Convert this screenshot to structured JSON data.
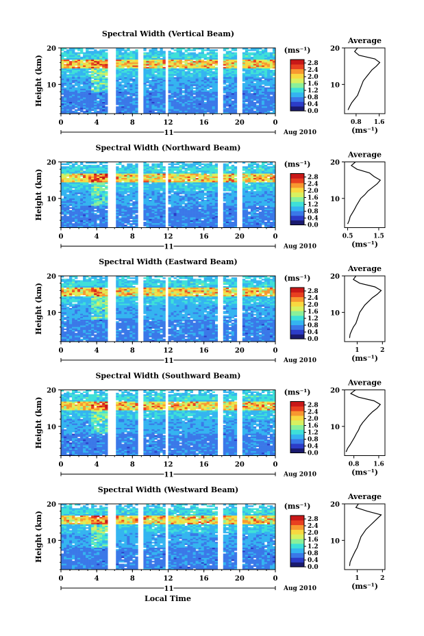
{
  "chart_data": {
    "type": "heatmap",
    "panels": [
      {
        "title": "Spectral Width (Vertical Beam)",
        "ylabel": "Height (km)",
        "ylim": [
          2,
          20
        ],
        "yticks": [
          "20",
          "10"
        ],
        "xlim": [
          0,
          24
        ],
        "xticks": [
          "0",
          "4",
          "8",
          "12",
          "16",
          "20",
          "0"
        ],
        "date_marker": "11",
        "date_label": "Aug 2010",
        "colorbar_unit": "(ms⁻¹)",
        "colorbar_ticks": [
          "2.8",
          "2.4",
          "2.0",
          "1.6",
          "1.2",
          "0.8",
          "0.4",
          "0.0"
        ],
        "colorbar_range": [
          0.0,
          3.0
        ],
        "data_gaps_hours": [
          [
            5.2,
            6.0
          ],
          [
            8.6,
            9.1
          ],
          [
            11.6,
            12.0
          ],
          [
            17.6,
            18.2
          ],
          [
            19.6,
            20.4
          ]
        ],
        "profile": {
          "title": "Average",
          "xlabel": "(ms⁻¹)",
          "xticks": [
            "0.8",
            "1.6"
          ],
          "xlim": [
            0.4,
            1.8
          ],
          "height_km": [
            3,
            4,
            5,
            6,
            7,
            8,
            9,
            10,
            11,
            12,
            13,
            14,
            15,
            16,
            17,
            18,
            19,
            20
          ],
          "width": [
            0.52,
            0.58,
            0.65,
            0.75,
            0.85,
            0.9,
            0.95,
            1.0,
            1.05,
            1.15,
            1.25,
            1.35,
            1.5,
            1.62,
            1.45,
            0.9,
            0.75,
            0.85
          ]
        }
      },
      {
        "title": "Spectral Width (Northward Beam)",
        "ylabel": "Height (km)",
        "ylim": [
          2,
          20
        ],
        "yticks": [
          "20",
          "10"
        ],
        "xlim": [
          0,
          24
        ],
        "xticks": [
          "0",
          "4",
          "8",
          "12",
          "16",
          "20",
          "0"
        ],
        "date_marker": "11",
        "date_label": "Aug 2010",
        "colorbar_unit": "(ms⁻¹)",
        "colorbar_ticks": [
          "2.8",
          "2.4",
          "2.0",
          "1.6",
          "1.2",
          "0.8",
          "0.4",
          "0.0"
        ],
        "colorbar_range": [
          0.0,
          3.0
        ],
        "data_gaps_hours": [
          [
            5.2,
            6.0
          ],
          [
            8.6,
            9.1
          ],
          [
            11.6,
            12.0
          ],
          [
            17.6,
            18.2
          ],
          [
            19.6,
            20.4
          ]
        ],
        "profile": {
          "title": "Average",
          "xlabel": "(ms⁻¹)",
          "xticks": [
            "0.5",
            "1.5"
          ],
          "xlim": [
            0.4,
            1.7
          ],
          "height_km": [
            3,
            4,
            5,
            6,
            7,
            8,
            9,
            10,
            11,
            12,
            13,
            14,
            15,
            16,
            17,
            18,
            19,
            20
          ],
          "width": [
            0.5,
            0.55,
            0.58,
            0.65,
            0.72,
            0.78,
            0.85,
            0.92,
            1.05,
            1.15,
            1.3,
            1.45,
            1.55,
            1.35,
            1.2,
            0.8,
            0.62,
            0.75
          ]
        }
      },
      {
        "title": "Spectral Width (Eastward Beam)",
        "ylabel": "Height (km)",
        "ylim": [
          2,
          20
        ],
        "yticks": [
          "20",
          "10"
        ],
        "xlim": [
          0,
          24
        ],
        "xticks": [
          "0",
          "4",
          "8",
          "12",
          "16",
          "20",
          "0"
        ],
        "date_marker": "11",
        "date_label": "Aug 2010",
        "colorbar_unit": "(ms⁻¹)",
        "colorbar_ticks": [
          "2.8",
          "2.4",
          "2.0",
          "1.6",
          "1.2",
          "0.8",
          "0.4",
          "0.0"
        ],
        "colorbar_range": [
          0.0,
          3.0
        ],
        "data_gaps_hours": [
          [
            5.2,
            6.0
          ],
          [
            8.6,
            9.1
          ],
          [
            11.6,
            12.0
          ],
          [
            17.6,
            18.2
          ],
          [
            19.6,
            20.4
          ]
        ],
        "profile": {
          "title": "Average",
          "xlabel": "(ms⁻¹)",
          "xticks": [
            "1",
            "2"
          ],
          "xlim": [
            0.5,
            2.1
          ],
          "height_km": [
            3,
            4,
            5,
            6,
            7,
            8,
            9,
            10,
            11,
            12,
            13,
            14,
            15,
            16,
            17,
            18,
            19,
            20
          ],
          "width": [
            0.7,
            0.72,
            0.78,
            0.85,
            0.95,
            1.0,
            1.05,
            1.1,
            1.2,
            1.3,
            1.45,
            1.6,
            1.8,
            1.95,
            1.7,
            1.1,
            0.85,
            0.95
          ]
        }
      },
      {
        "title": "Spectral Width (Southward Beam)",
        "ylabel": "Height (km)",
        "ylim": [
          2,
          20
        ],
        "yticks": [
          "20",
          "10"
        ],
        "xlim": [
          0,
          24
        ],
        "xticks": [
          "0",
          "4",
          "8",
          "12",
          "16",
          "20",
          "0"
        ],
        "date_marker": "11",
        "date_label": "Aug 2010",
        "colorbar_unit": "(ms⁻¹)",
        "colorbar_ticks": [
          "2.8",
          "2.4",
          "2.0",
          "1.6",
          "1.2",
          "0.8",
          "0.4",
          "0.0"
        ],
        "colorbar_range": [
          0.0,
          3.0
        ],
        "data_gaps_hours": [
          [
            5.2,
            6.0
          ],
          [
            8.6,
            9.1
          ],
          [
            11.6,
            12.0
          ],
          [
            17.6,
            18.2
          ],
          [
            19.6,
            20.4
          ]
        ],
        "profile": {
          "title": "Average",
          "xlabel": "(ms⁻¹)",
          "xticks": [
            "0.8",
            "1.6"
          ],
          "xlim": [
            0.5,
            1.8
          ],
          "height_km": [
            3,
            4,
            5,
            6,
            7,
            8,
            9,
            10,
            11,
            12,
            13,
            14,
            15,
            16,
            17,
            18,
            19,
            20
          ],
          "width": [
            0.55,
            0.6,
            0.68,
            0.75,
            0.82,
            0.88,
            0.95,
            1.0,
            1.08,
            1.18,
            1.28,
            1.4,
            1.55,
            1.65,
            1.45,
            0.95,
            0.7,
            0.85
          ]
        }
      },
      {
        "title": "Spectral Width (Westward Beam)",
        "ylabel": "Height (km)",
        "ylim": [
          2,
          20
        ],
        "yticks": [
          "20",
          "10"
        ],
        "xlim": [
          0,
          24
        ],
        "xticks": [
          "0",
          "4",
          "8",
          "12",
          "16",
          "20",
          "0"
        ],
        "date_marker": "11",
        "date_label": "Aug 2010",
        "colorbar_unit": "(ms⁻¹)",
        "colorbar_ticks": [
          "2.8",
          "2.4",
          "2.0",
          "1.6",
          "1.2",
          "0.8",
          "0.4",
          "0.0"
        ],
        "colorbar_range": [
          0.0,
          3.0
        ],
        "data_gaps_hours": [
          [
            5.2,
            6.0
          ],
          [
            8.6,
            9.1
          ],
          [
            11.6,
            12.0
          ],
          [
            17.6,
            18.2
          ],
          [
            19.6,
            20.4
          ]
        ],
        "profile": {
          "title": "Average",
          "xlabel": "(ms⁻¹)",
          "xticks": [
            "1",
            "2"
          ],
          "xlim": [
            0.5,
            2.1
          ],
          "height_km": [
            3,
            4,
            5,
            6,
            7,
            8,
            9,
            10,
            11,
            12,
            13,
            14,
            15,
            16,
            17,
            18,
            19,
            20
          ],
          "width": [
            0.7,
            0.72,
            0.78,
            0.85,
            0.92,
            1.0,
            1.05,
            1.1,
            1.15,
            1.25,
            1.35,
            1.5,
            1.65,
            1.8,
            1.95,
            1.4,
            0.95,
            1.05
          ]
        }
      }
    ],
    "xlabel": "Local Time",
    "colorscale": [
      "#1a1a6e",
      "#2c3cc8",
      "#3a78e8",
      "#34b4f0",
      "#3ee0d8",
      "#8af09a",
      "#d8f060",
      "#f8d840",
      "#f89830",
      "#e84020",
      "#c81818"
    ]
  }
}
